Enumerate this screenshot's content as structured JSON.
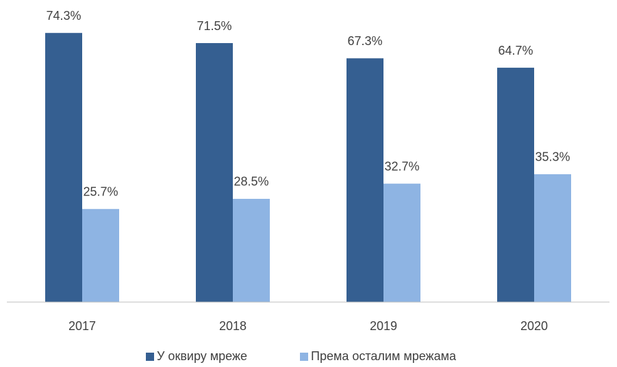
{
  "chart_data": {
    "type": "bar",
    "categories": [
      "2017",
      "2018",
      "2019",
      "2020"
    ],
    "series": [
      {
        "name": "У оквиру мреже",
        "color": "#355f91",
        "values": [
          74.3,
          71.5,
          67.3,
          64.7
        ],
        "value_labels": [
          "74.3%",
          "71.5%",
          "67.3%",
          "64.7%"
        ]
      },
      {
        "name": "Према осталим мрежама",
        "color": "#8eb4e3",
        "values": [
          25.7,
          28.5,
          32.7,
          35.3
        ],
        "value_labels": [
          "25.7%",
          "28.5%",
          "32.7%",
          "35.3%"
        ]
      }
    ],
    "ylim": [
      0,
      80
    ],
    "legend": "bottom"
  }
}
